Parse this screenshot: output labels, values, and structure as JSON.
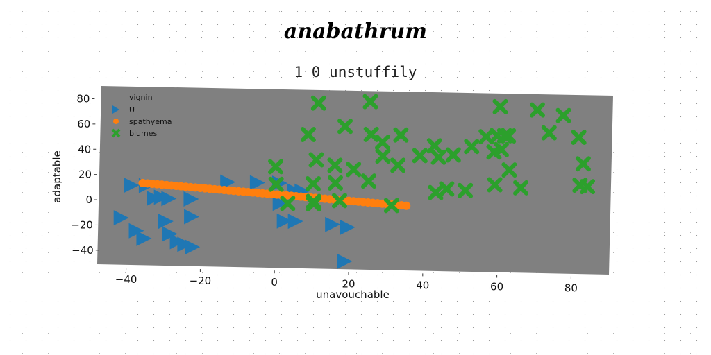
{
  "chart_data": {
    "type": "scatter",
    "title": "anabathrum",
    "subtitle": "1 0 unstuffily",
    "xlabel": "unavouchable",
    "ylabel": "adaptable",
    "xlim": [
      -47,
      91
    ],
    "ylim": [
      -49,
      91
    ],
    "xticks": [
      -40,
      -20,
      0,
      20,
      40,
      60,
      80
    ],
    "yticks": [
      -40,
      -20,
      0,
      20,
      40,
      60,
      80
    ],
    "x_tick_labels": [
      "−40",
      "−20",
      "0",
      "20",
      "40",
      "60",
      "80"
    ],
    "y_tick_labels": [
      "−40",
      "−20",
      "0",
      "20",
      "40",
      "60",
      "80"
    ],
    "grid": false,
    "legend_position": "top-left",
    "legend_title": "vignin",
    "plot_background": "#808080",
    "series": [
      {
        "name": "U",
        "marker": "triangle-right",
        "color": "#1f77b4",
        "points": [
          [
            -38,
            12
          ],
          [
            -34,
            12
          ],
          [
            -32,
            2
          ],
          [
            -30,
            3
          ],
          [
            -28,
            2
          ],
          [
            -22,
            2
          ],
          [
            -41,
            -14
          ],
          [
            -37,
            -24
          ],
          [
            -35,
            -30
          ],
          [
            -29,
            -16
          ],
          [
            -28,
            -26
          ],
          [
            -26,
            -32
          ],
          [
            -24,
            -34
          ],
          [
            -22,
            -36
          ],
          [
            -22,
            -12
          ],
          [
            -12,
            16
          ],
          [
            -4,
            16
          ],
          [
            2,
            16
          ],
          [
            2,
            0
          ],
          [
            3,
            -14
          ],
          [
            6,
            -14
          ],
          [
            16,
            -16
          ],
          [
            20,
            -18
          ],
          [
            19,
            -45
          ],
          [
            6,
            10
          ],
          [
            8,
            10
          ]
        ]
      },
      {
        "name": "spathyema",
        "marker": "circle",
        "color": "#ff7f0e",
        "line_from": [
          -35,
          14
        ],
        "line_to": [
          36,
          0
        ],
        "count": 56
      },
      {
        "name": "blumes",
        "marker": "x",
        "color": "#2ca02c",
        "points": [
          [
            13,
            80
          ],
          [
            27,
            82
          ],
          [
            20,
            62
          ],
          [
            10,
            55
          ],
          [
            27,
            56
          ],
          [
            30,
            50
          ],
          [
            35,
            56
          ],
          [
            30,
            39
          ],
          [
            12,
            35
          ],
          [
            17,
            31
          ],
          [
            22,
            28
          ],
          [
            34,
            32
          ],
          [
            40,
            40
          ],
          [
            44,
            48
          ],
          [
            45,
            39
          ],
          [
            49,
            41
          ],
          [
            54,
            48
          ],
          [
            58,
            56
          ],
          [
            61,
            57
          ],
          [
            63,
            57
          ],
          [
            64,
            57
          ],
          [
            62,
            80
          ],
          [
            72,
            78
          ],
          [
            79,
            74
          ],
          [
            75,
            60
          ],
          [
            83,
            57
          ],
          [
            84,
            36
          ],
          [
            60,
            44
          ],
          [
            62,
            46
          ],
          [
            64,
            30
          ],
          [
            1,
            29
          ],
          [
            1,
            15
          ],
          [
            11,
            16
          ],
          [
            17,
            17
          ],
          [
            26,
            19
          ],
          [
            60,
            18
          ],
          [
            67,
            16
          ],
          [
            83,
            19
          ],
          [
            85,
            18
          ],
          [
            44,
            11
          ],
          [
            47,
            14
          ],
          [
            52,
            13
          ],
          [
            4,
            0
          ],
          [
            11,
            2
          ],
          [
            11,
            0
          ],
          [
            18,
            3
          ],
          [
            32,
            0
          ]
        ]
      }
    ]
  }
}
